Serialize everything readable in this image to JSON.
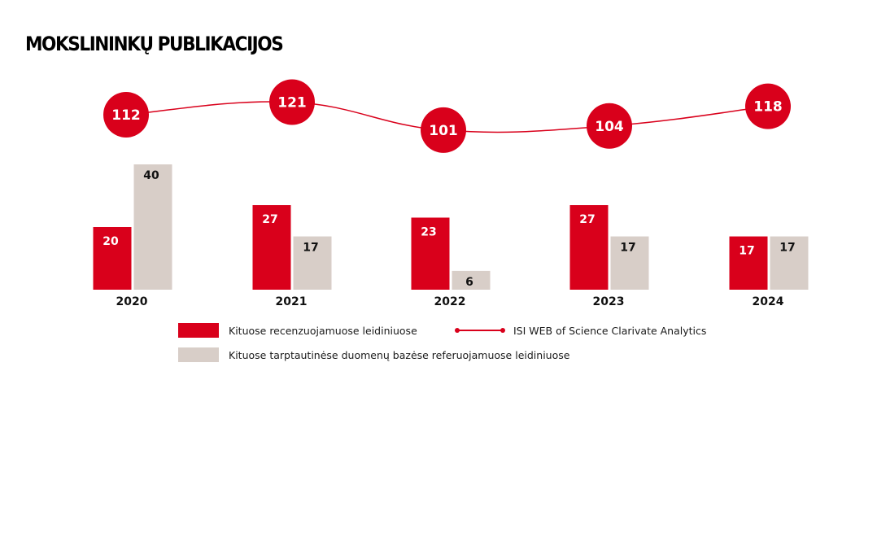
{
  "chart_data": {
    "type": "bar",
    "title": "MOKSLININKŲ PUBLIKACIJOS",
    "categories": [
      "2020",
      "2021",
      "2022",
      "2023",
      "2024"
    ],
    "series": [
      {
        "name": "Kituose recenzuojamuose leidiniuose",
        "type": "bar",
        "color": "#d9001b",
        "values": [
          20,
          27,
          23,
          27,
          17
        ]
      },
      {
        "name": "Kituose tarptautinėse duomenų bazėse referuojamuose leidiniuose",
        "type": "bar",
        "color": "#d8cec8",
        "values": [
          40,
          17,
          6,
          17,
          17
        ]
      },
      {
        "name": "ISI WEB of Science Clarivate Analytics",
        "type": "line",
        "color": "#d9001b",
        "values": [
          112,
          121,
          101,
          104,
          118
        ]
      }
    ],
    "xlabel": "",
    "ylabel": "",
    "grid": false,
    "legend_position": "bottom"
  }
}
